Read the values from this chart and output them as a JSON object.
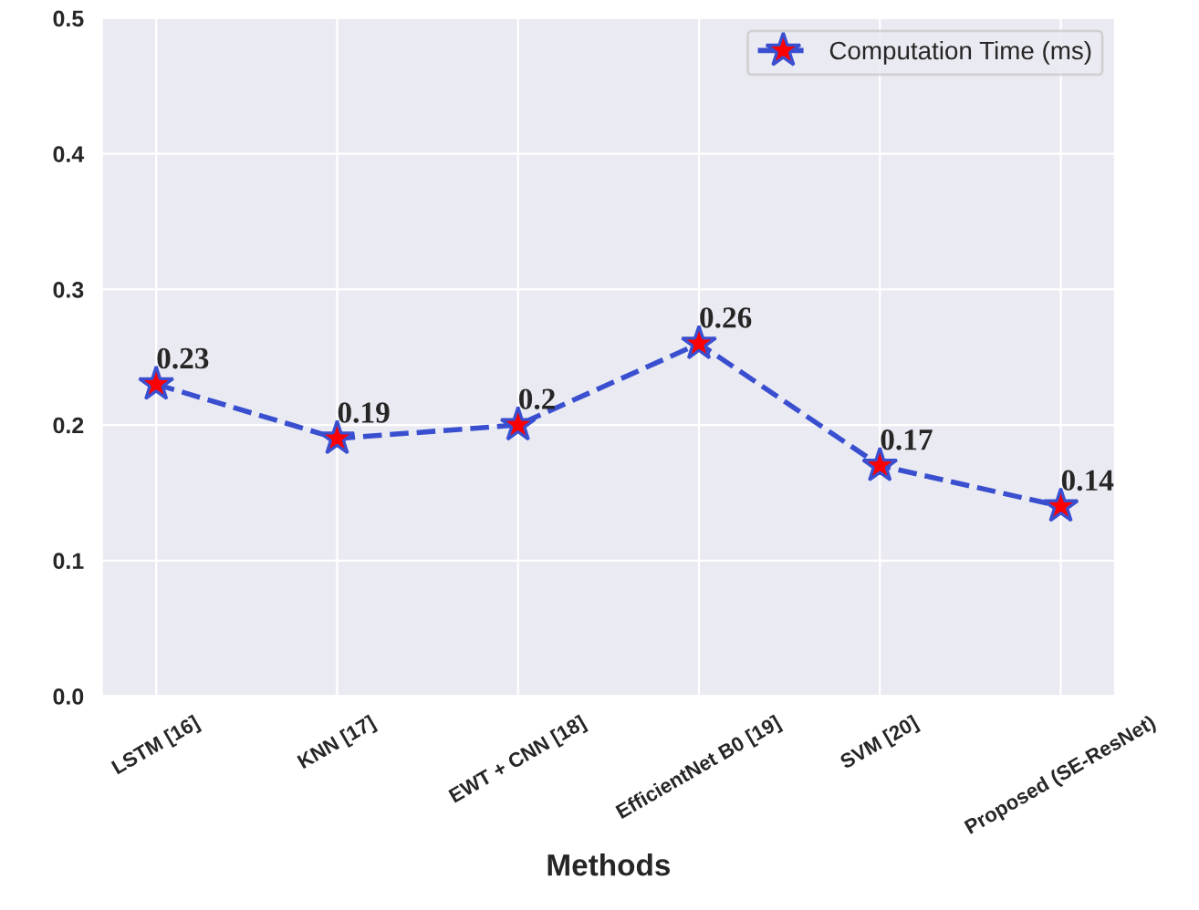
{
  "chart_data": {
    "type": "line",
    "xlabel": "Methods",
    "categories": [
      "LSTM [16]",
      "KNN [17]",
      "EWT + CNN [18]",
      "EfficientNet B0 [19]",
      "SVM [20]",
      "Proposed (SE-ResNet)"
    ],
    "series": [
      {
        "name": "Computation Time (ms)",
        "color": "#3a4fd0",
        "values": [
          0.23,
          0.19,
          0.2,
          0.26,
          0.17,
          0.14
        ]
      }
    ],
    "ylim": [
      0,
      0.5
    ],
    "yticks": [
      {
        "value": 0,
        "label": "0.0"
      },
      0.1,
      0.2,
      0.3,
      0.4,
      0.5
    ],
    "grid": true,
    "legend": "top right",
    "marker": "star",
    "line_style": "dashed",
    "data_labels": true
  }
}
